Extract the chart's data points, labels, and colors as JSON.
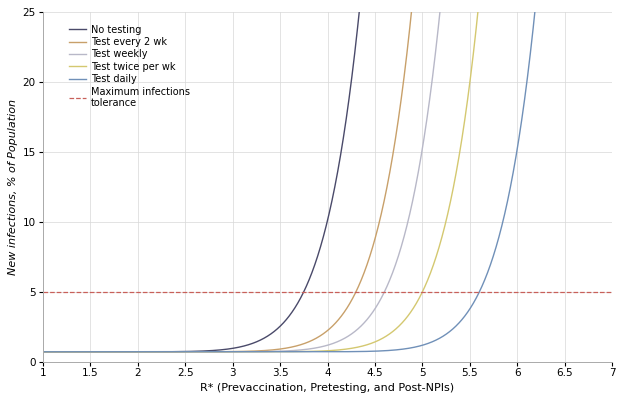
{
  "xlabel": "R* (Prevaccination, Pretesting, and Post-NPIs)",
  "ylabel": "New infections, % of Population",
  "xlim": [
    1,
    7
  ],
  "ylim": [
    0,
    25
  ],
  "xticks": [
    1,
    1.5,
    2,
    2.5,
    3,
    3.5,
    4,
    4.5,
    5,
    5.5,
    6,
    6.5,
    7
  ],
  "yticks": [
    0,
    5,
    10,
    15,
    20,
    25
  ],
  "dashed_y": 5,
  "dashed_color": "#c8605a",
  "curve_configs": [
    {
      "label": "No testing",
      "color": "#4a4a6a",
      "shift": 0.0
    },
    {
      "label": "Test every 2 wk",
      "color": "#c8a06a",
      "shift": 0.55
    },
    {
      "label": "Test weekly",
      "color": "#b8b8c8",
      "shift": 0.85
    },
    {
      "label": "Test twice per wk",
      "color": "#d4c870",
      "shift": 1.25
    },
    {
      "label": "Test daily",
      "color": "#7090b8",
      "shift": 1.85
    }
  ],
  "background_color": "#ffffff",
  "grid_color": "#d8d8d8",
  "legend_fontsize": 7,
  "axis_fontsize": 7.5,
  "label_fontsize": 8,
  "linewidth": 1.0
}
